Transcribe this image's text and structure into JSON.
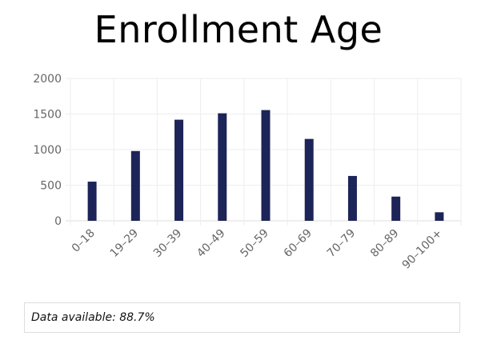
{
  "title": "Enrollment Age",
  "chart_data": {
    "type": "bar",
    "categories": [
      "0–18",
      "19–29",
      "30–39",
      "40–49",
      "50–59",
      "60–69",
      "70–79",
      "80–89",
      "90–100+"
    ],
    "values": [
      550,
      980,
      1420,
      1510,
      1555,
      1150,
      630,
      340,
      120
    ],
    "ylim": [
      0,
      2000
    ],
    "yticks": [
      0,
      500,
      1000,
      1500,
      2000
    ],
    "grid": true,
    "bar_color": "#1d2458"
  },
  "footer": {
    "text": "Data available: 88.7%"
  }
}
